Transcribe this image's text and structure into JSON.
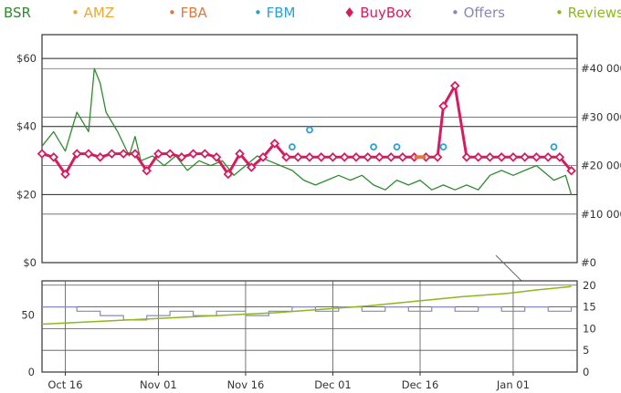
{
  "legend": [
    {
      "label": "BSR",
      "color": "#2e8b2e",
      "marker": ""
    },
    {
      "label": "AMZ",
      "color": "#f0a830",
      "marker": "•"
    },
    {
      "label": "FBA",
      "color": "#e07840",
      "marker": "•"
    },
    {
      "label": "FBM",
      "color": "#2aa0d8",
      "marker": "•"
    },
    {
      "label": "BuyBox",
      "color": "#d81b5e",
      "marker": "♦"
    },
    {
      "label": "Offers",
      "color": "#8888bb",
      "marker": "•"
    },
    {
      "label": "Reviews",
      "color": "#8cb81c",
      "marker": "•"
    }
  ],
  "chart_data": [
    {
      "type": "line",
      "title": "",
      "x_tick_labels": [
        "Oct 16",
        "Nov 01",
        "Nov 16",
        "Dec 01",
        "Dec 16",
        "Jan 01"
      ],
      "x_range": [
        "2016-10-12",
        "2017-01-12"
      ],
      "price_axis": {
        "ticks": [
          "$0",
          "$20",
          "$40",
          "$60"
        ],
        "range": [
          0,
          67
        ]
      },
      "bsr_axis": {
        "ticks": [
          "#0",
          "#10 000",
          "#20 000",
          "#30 000",
          "#40 000"
        ],
        "range": [
          0,
          47000
        ]
      },
      "grid": true,
      "series": [
        {
          "name": "BSR",
          "axis": "bsr",
          "color": "#2e8b2e",
          "points": [
            [
              "2016-10-12",
              24000
            ],
            [
              "2016-10-14",
              27000
            ],
            [
              "2016-10-16",
              23000
            ],
            [
              "2016-10-18",
              31000
            ],
            [
              "2016-10-20",
              27000
            ],
            [
              "2016-10-21",
              40000
            ],
            [
              "2016-10-22",
              37000
            ],
            [
              "2016-10-23",
              31000
            ],
            [
              "2016-10-25",
              27000
            ],
            [
              "2016-10-27",
              22000
            ],
            [
              "2016-10-28",
              26000
            ],
            [
              "2016-10-29",
              21000
            ],
            [
              "2016-10-31",
              22000
            ],
            [
              "2016-11-02",
              20000
            ],
            [
              "2016-11-04",
              22000
            ],
            [
              "2016-11-06",
              19000
            ],
            [
              "2016-11-08",
              21000
            ],
            [
              "2016-11-10",
              20000
            ],
            [
              "2016-11-12",
              21000
            ],
            [
              "2016-11-14",
              18000
            ],
            [
              "2016-11-16",
              20000
            ],
            [
              "2016-11-18",
              22000
            ],
            [
              "2016-11-20",
              21000
            ],
            [
              "2016-11-22",
              20000
            ],
            [
              "2016-11-24",
              19000
            ],
            [
              "2016-11-26",
              17000
            ],
            [
              "2016-11-28",
              16000
            ],
            [
              "2016-11-30",
              17000
            ],
            [
              "2016-12-02",
              18000
            ],
            [
              "2016-12-04",
              17000
            ],
            [
              "2016-12-06",
              18000
            ],
            [
              "2016-12-08",
              16000
            ],
            [
              "2016-12-10",
              15000
            ],
            [
              "2016-12-12",
              17000
            ],
            [
              "2016-12-14",
              16000
            ],
            [
              "2016-12-16",
              17000
            ],
            [
              "2016-12-18",
              15000
            ],
            [
              "2016-12-20",
              16000
            ],
            [
              "2016-12-22",
              15000
            ],
            [
              "2016-12-24",
              16000
            ],
            [
              "2016-12-26",
              15000
            ],
            [
              "2016-12-28",
              18000
            ],
            [
              "2016-12-30",
              19000
            ],
            [
              "2017-01-01",
              18000
            ],
            [
              "2017-01-03",
              19000
            ],
            [
              "2017-01-05",
              20000
            ],
            [
              "2017-01-08",
              17000
            ],
            [
              "2017-01-10",
              18000
            ],
            [
              "2017-01-11",
              14000
            ]
          ]
        },
        {
          "name": "BuyBox",
          "axis": "price",
          "color": "#d81b5e",
          "points": [
            [
              "2016-10-12",
              32
            ],
            [
              "2016-10-14",
              31
            ],
            [
              "2016-10-16",
              26
            ],
            [
              "2016-10-18",
              32
            ],
            [
              "2016-10-20",
              32
            ],
            [
              "2016-10-22",
              31
            ],
            [
              "2016-10-24",
              32
            ],
            [
              "2016-10-26",
              32
            ],
            [
              "2016-10-28",
              32
            ],
            [
              "2016-10-30",
              27
            ],
            [
              "2016-11-01",
              32
            ],
            [
              "2016-11-03",
              32
            ],
            [
              "2016-11-05",
              31
            ],
            [
              "2016-11-07",
              32
            ],
            [
              "2016-11-09",
              32
            ],
            [
              "2016-11-11",
              31
            ],
            [
              "2016-11-13",
              26
            ],
            [
              "2016-11-15",
              32
            ],
            [
              "2016-11-17",
              28
            ],
            [
              "2016-11-19",
              31
            ],
            [
              "2016-11-21",
              35
            ],
            [
              "2016-11-23",
              31
            ],
            [
              "2016-11-25",
              31
            ],
            [
              "2016-11-27",
              31
            ],
            [
              "2016-11-29",
              31
            ],
            [
              "2016-12-01",
              31
            ],
            [
              "2016-12-03",
              31
            ],
            [
              "2016-12-05",
              31
            ],
            [
              "2016-12-07",
              31
            ],
            [
              "2016-12-09",
              31
            ],
            [
              "2016-12-11",
              31
            ],
            [
              "2016-12-13",
              31
            ],
            [
              "2016-12-15",
              31
            ],
            [
              "2016-12-17",
              31
            ],
            [
              "2016-12-19",
              31
            ],
            [
              "2016-12-20",
              46
            ],
            [
              "2016-12-22",
              52
            ],
            [
              "2016-12-24",
              31
            ],
            [
              "2016-12-26",
              31
            ],
            [
              "2016-12-28",
              31
            ],
            [
              "2016-12-30",
              31
            ],
            [
              "2017-01-01",
              31
            ],
            [
              "2017-01-03",
              31
            ],
            [
              "2017-01-05",
              31
            ],
            [
              "2017-01-07",
              31
            ],
            [
              "2017-01-09",
              31
            ],
            [
              "2017-01-11",
              27
            ]
          ]
        },
        {
          "name": "FBM",
          "axis": "price",
          "color": "#2aa0d8",
          "points": [
            [
              "2016-11-24",
              34
            ],
            [
              "2016-11-27",
              39
            ],
            [
              "2016-12-08",
              34
            ],
            [
              "2016-12-12",
              34
            ],
            [
              "2016-12-20",
              34
            ],
            [
              "2017-01-08",
              34
            ]
          ]
        },
        {
          "name": "FBA",
          "axis": "price",
          "color": "#e07840",
          "points": [
            [
              "2016-12-15",
              31
            ],
            [
              "2016-12-16",
              31
            ],
            [
              "2016-12-17",
              31
            ]
          ]
        }
      ]
    },
    {
      "type": "line",
      "title": "",
      "left_axis": {
        "ticks": [
          "0",
          "50"
        ],
        "range": [
          0,
          80
        ]
      },
      "right_axis": {
        "ticks": [
          "0",
          "5",
          "10",
          "15",
          "20"
        ],
        "range": [
          0,
          21
        ]
      },
      "grid": true,
      "series": [
        {
          "name": "Offers",
          "axis": "right",
          "color": "#8888bb",
          "points": [
            [
              "2016-10-12",
              15
            ],
            [
              "2016-10-18",
              14
            ],
            [
              "2016-10-22",
              13
            ],
            [
              "2016-10-26",
              12
            ],
            [
              "2016-10-30",
              13
            ],
            [
              "2016-11-03",
              14
            ],
            [
              "2016-11-07",
              13
            ],
            [
              "2016-11-11",
              14
            ],
            [
              "2016-11-16",
              13
            ],
            [
              "2016-11-20",
              14
            ],
            [
              "2016-11-24",
              15
            ],
            [
              "2016-11-28",
              14
            ],
            [
              "2016-12-02",
              15
            ],
            [
              "2016-12-06",
              14
            ],
            [
              "2016-12-10",
              15
            ],
            [
              "2016-12-14",
              14
            ],
            [
              "2016-12-18",
              15
            ],
            [
              "2016-12-22",
              14
            ],
            [
              "2016-12-26",
              15
            ],
            [
              "2016-12-30",
              14
            ],
            [
              "2017-01-03",
              15
            ],
            [
              "2017-01-07",
              14
            ],
            [
              "2017-01-11",
              15
            ]
          ]
        },
        {
          "name": "Reviews",
          "axis": "left",
          "color": "#8cb81c",
          "points": [
            [
              "2016-10-12",
              42
            ],
            [
              "2016-10-20",
              44
            ],
            [
              "2016-10-28",
              46
            ],
            [
              "2016-11-05",
              48
            ],
            [
              "2016-11-13",
              50
            ],
            [
              "2016-11-21",
              52
            ],
            [
              "2016-11-29",
              55
            ],
            [
              "2016-12-07",
              58
            ],
            [
              "2016-12-15",
              62
            ],
            [
              "2016-12-23",
              66
            ],
            [
              "2016-12-31",
              69
            ],
            [
              "2017-01-05",
              72
            ],
            [
              "2017-01-11",
              75
            ]
          ]
        }
      ]
    }
  ]
}
